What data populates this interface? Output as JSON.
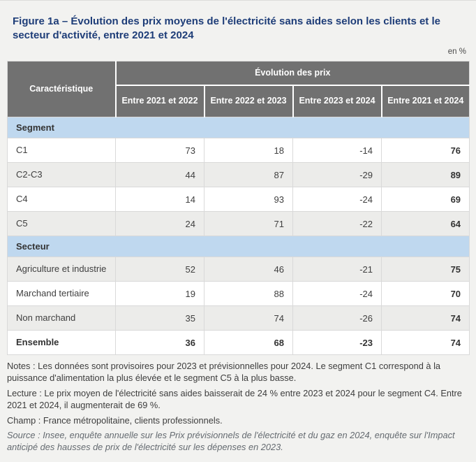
{
  "colors": {
    "page-bg": "#f2f2f0",
    "title-blue": "#1e3d78",
    "header-gray": "#717171",
    "section-blue": "#bfd8ef",
    "row-shaded": "#ececea"
  },
  "chart_data": {
    "type": "table",
    "title": "Figure 1a – Évolution des prix moyens de l'électricité sans aides selon les clients et le secteur d'activité, entre 2021 et 2024",
    "unit": "en %",
    "corner_header": "Caractéristique",
    "group_header": "Évolution des prix",
    "columns": [
      "Entre 2021 et 2022",
      "Entre 2022 et 2023",
      "Entre 2023 et 2024",
      "Entre 2021 et 2024"
    ],
    "sections": [
      {
        "label": "Segment",
        "rows": [
          {
            "label": "C1",
            "values": [
              73,
              18,
              -14,
              76
            ]
          },
          {
            "label": "C2-C3",
            "values": [
              44,
              87,
              -29,
              89
            ]
          },
          {
            "label": "C4",
            "values": [
              14,
              93,
              -24,
              69
            ]
          },
          {
            "label": "C5",
            "values": [
              24,
              71,
              -22,
              64
            ]
          }
        ]
      },
      {
        "label": "Secteur",
        "rows": [
          {
            "label": "Agriculture et industrie",
            "values": [
              52,
              46,
              -21,
              75
            ]
          },
          {
            "label": "Marchand tertiaire",
            "values": [
              19,
              88,
              -24,
              70
            ]
          },
          {
            "label": "Non marchand",
            "values": [
              35,
              74,
              -26,
              74
            ]
          },
          {
            "label": "Ensemble",
            "values": [
              36,
              68,
              -23,
              74
            ],
            "bold": true
          }
        ]
      }
    ]
  },
  "footnotes": {
    "notes": "Notes : Les données sont provisoires pour 2023 et prévisionnelles pour 2024. Le segment C1 correspond à la puissance d'alimentation la plus élevée et le segment C5 à la plus basse.",
    "lecture": "Lecture : Le prix moyen de l'électricité sans aides baisserait de 24 % entre 2023 et 2024 pour le segment C4. Entre 2021 et 2024, il augmenterait de 69 %.",
    "champ": "Champ : France métropolitaine, clients professionnels.",
    "source": "Source : Insee, enquête annuelle sur les Prix prévisionnels de l'électricité et du gaz en 2024, enquête sur l'Impact anticipé des hausses de prix de l'électricité sur les dépenses en 2023."
  }
}
